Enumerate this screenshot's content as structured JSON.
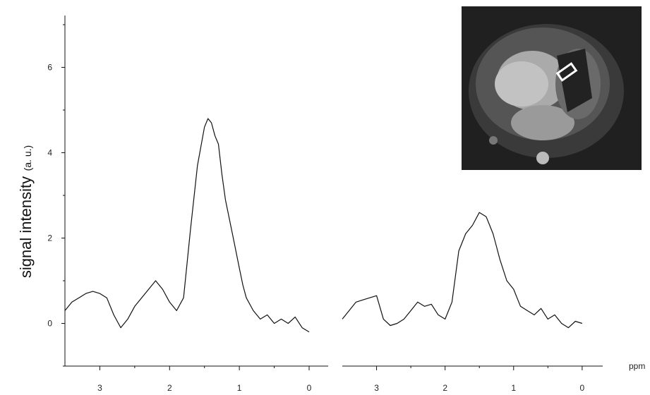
{
  "chart_data": [
    {
      "type": "line",
      "ylabel": "signal intensity",
      "ylabel_unit": "(a. u.)",
      "xlabel": "",
      "xlim": [
        3.5,
        0
      ],
      "ylim": [
        -1,
        7
      ],
      "x_ticks": [
        "3",
        "2",
        "1",
        "0"
      ],
      "y_ticks": [
        "0",
        "2",
        "4",
        "6"
      ],
      "series": [
        {
          "x": [
            3.5,
            3.4,
            3.3,
            3.2,
            3.1,
            3.0,
            2.9,
            2.8,
            2.7,
            2.6,
            2.5,
            2.4,
            2.3,
            2.2,
            2.1,
            2.0,
            1.9,
            1.8,
            1.7,
            1.6,
            1.5,
            1.45,
            1.4,
            1.35,
            1.3,
            1.25,
            1.2,
            1.1,
            1.0,
            0.95,
            0.9,
            0.8,
            0.7,
            0.6,
            0.5,
            0.4,
            0.3,
            0.2,
            0.1,
            0.0
          ],
          "y": [
            0.3,
            0.5,
            0.6,
            0.7,
            0.75,
            0.7,
            0.6,
            0.2,
            -0.1,
            0.1,
            0.4,
            0.6,
            0.8,
            1.0,
            0.8,
            0.5,
            0.3,
            0.6,
            2.2,
            3.7,
            4.6,
            4.8,
            4.7,
            4.4,
            4.2,
            3.5,
            2.9,
            2.1,
            1.3,
            0.9,
            0.6,
            0.3,
            0.1,
            0.2,
            0.0,
            0.1,
            0.0,
            0.15,
            -0.1,
            -0.2
          ]
        }
      ]
    },
    {
      "type": "line",
      "xlabel": "ppm",
      "xlim": [
        3.5,
        -0.3
      ],
      "ylim": [
        -1,
        7
      ],
      "x_ticks": [
        "3",
        "2",
        "1",
        "0"
      ],
      "series": [
        {
          "x": [
            3.5,
            3.4,
            3.3,
            3.2,
            3.1,
            3.0,
            2.9,
            2.8,
            2.7,
            2.6,
            2.5,
            2.4,
            2.3,
            2.2,
            2.1,
            2.0,
            1.9,
            1.8,
            1.7,
            1.6,
            1.5,
            1.4,
            1.35,
            1.3,
            1.25,
            1.2,
            1.1,
            1.0,
            0.95,
            0.9,
            0.8,
            0.7,
            0.6,
            0.5,
            0.4,
            0.3,
            0.2,
            0.1,
            0.0
          ],
          "y": [
            0.1,
            0.3,
            0.5,
            0.55,
            0.6,
            0.65,
            0.1,
            -0.05,
            0.0,
            0.1,
            0.3,
            0.5,
            0.4,
            0.45,
            0.2,
            0.1,
            0.5,
            1.7,
            2.1,
            2.3,
            2.6,
            2.5,
            2.3,
            2.1,
            1.8,
            1.5,
            1.0,
            0.8,
            0.6,
            0.4,
            0.3,
            0.2,
            0.35,
            0.1,
            0.2,
            0.0,
            -0.1,
            0.05,
            0.0
          ]
        }
      ]
    }
  ]
}
